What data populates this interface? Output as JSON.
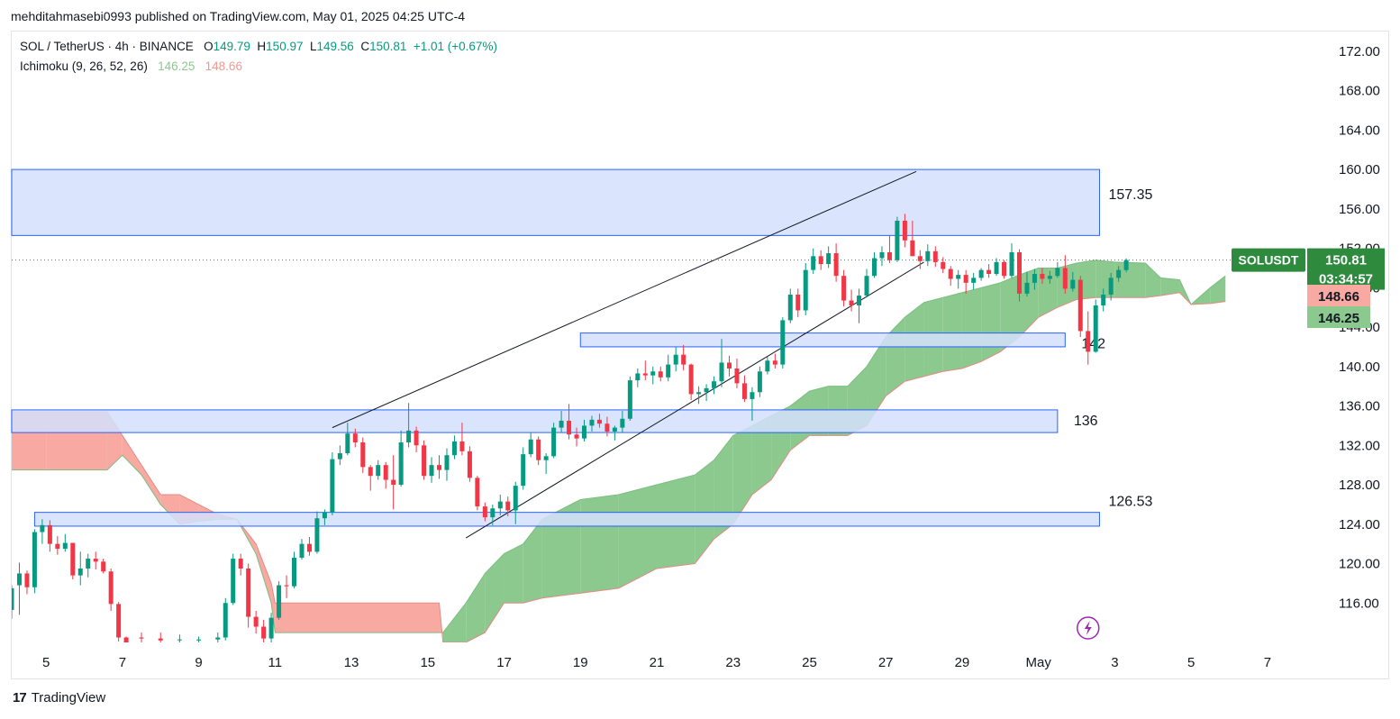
{
  "header": {
    "published": "mehditahmasebi0993 published on TradingView.com, May 01, 2025 04:25 UTC-4"
  },
  "legend": {
    "symbol": "SOL / TetherUS · 4h · BINANCE",
    "o_label": "O",
    "o_value": "149.79",
    "h_label": "H",
    "h_value": "150.97",
    "l_label": "L",
    "l_value": "149.56",
    "c_label": "C",
    "c_value": "150.81",
    "change": "+1.01 (+0.67%)",
    "indicator": "Ichimoku (9, 26, 52, 26)",
    "span_a": "146.25",
    "span_b": "148.66"
  },
  "footer": {
    "brand": "TradingView",
    "logo": "17"
  },
  "colors": {
    "up": "#089981",
    "down": "#f23645",
    "cloud_bull": "#8bc98e",
    "cloud_bear": "#f7a9a2",
    "zone_fill": "#d4e1fd",
    "zone_border": "#2962ff",
    "price_tag": "#2e8b3e"
  },
  "chart_data": {
    "type": "candlestick",
    "title": "SOL / TetherUS · 4h · BINANCE",
    "ylim": [
      112,
      174
    ],
    "y_ticks": [
      "172.00",
      "168.00",
      "164.00",
      "160.00",
      "156.00",
      "152.00",
      "148.00",
      "144.00",
      "140.00",
      "136.00",
      "132.00",
      "128.00",
      "124.00",
      "120.00",
      "116.00"
    ],
    "x_ticks": [
      "5",
      "7",
      "9",
      "11",
      "13",
      "15",
      "17",
      "19",
      "21",
      "23",
      "25",
      "27",
      "29",
      "May",
      "3",
      "5",
      "7"
    ],
    "x_tick_days": [
      5,
      7,
      9,
      11,
      13,
      15,
      17,
      19,
      21,
      23,
      25,
      27,
      29,
      31,
      33,
      35,
      37
    ],
    "x_range_days": [
      4.1,
      37.9
    ],
    "last_price": {
      "label": "SOLUSDT",
      "value": "150.81",
      "countdown": "03:34:57"
    },
    "ichimoku_tags": [
      {
        "value": "148.66",
        "kind": "span_b"
      },
      {
        "value": "146.25",
        "kind": "span_a"
      }
    ],
    "zones": [
      {
        "label": "157.35",
        "low": 153.3,
        "high": 160.0,
        "day_start": 4.1,
        "day_end": 32.6
      },
      {
        "label": "142",
        "low": 142.0,
        "high": 143.4,
        "day_start": 19.0,
        "day_end": 31.7
      },
      {
        "label": "136",
        "low": 133.3,
        "high": 135.6,
        "day_start": 4.1,
        "day_end": 31.5
      },
      {
        "label": "126.53",
        "low": 123.8,
        "high": 125.2,
        "day_start": 4.7,
        "day_end": 32.6
      }
    ],
    "trendlines": [
      {
        "day1": 12.5,
        "p1": 133.8,
        "day2": 27.8,
        "p2": 159.8
      },
      {
        "day1": 16.0,
        "p1": 122.6,
        "day2": 28.0,
        "p2": 150.6
      }
    ],
    "cloud": [
      {
        "day": 4.1,
        "a": 129.5,
        "b": 135.4
      },
      {
        "day": 5.0,
        "a": 129.5,
        "b": 135.4
      },
      {
        "day": 6.6,
        "a": 129.5,
        "b": 135.4
      },
      {
        "day": 7.0,
        "a": 131.0,
        "b": 133.0
      },
      {
        "day": 7.5,
        "a": 129.0,
        "b": 130.0
      },
      {
        "day": 8.0,
        "a": 126.0,
        "b": 127.0
      },
      {
        "day": 8.5,
        "a": 124.0,
        "b": 127.0
      },
      {
        "day": 9.0,
        "a": 124.3,
        "b": 126.0
      },
      {
        "day": 9.5,
        "a": 124.5,
        "b": 125.0
      },
      {
        "day": 10.0,
        "a": 124.5,
        "b": 124.5
      },
      {
        "day": 10.5,
        "a": 121.0,
        "b": 122.0
      },
      {
        "day": 10.9,
        "a": 116.0,
        "b": 118.0
      },
      {
        "day": 11.0,
        "a": 113.0,
        "b": 116.0
      },
      {
        "day": 15.3,
        "a": 113.0,
        "b": 116.0
      },
      {
        "day": 15.4,
        "a": 113.0,
        "b": 112.0
      },
      {
        "day": 16.0,
        "a": 116.0,
        "b": 112.0
      },
      {
        "day": 16.5,
        "a": 119.0,
        "b": 113.0
      },
      {
        "day": 17.0,
        "a": 121.0,
        "b": 116.0
      },
      {
        "day": 17.5,
        "a": 122.0,
        "b": 116.0
      },
      {
        "day": 18.0,
        "a": 124.5,
        "b": 116.5
      },
      {
        "day": 19.0,
        "a": 126.5,
        "b": 117.0
      },
      {
        "day": 20.0,
        "a": 127.0,
        "b": 117.5
      },
      {
        "day": 21.0,
        "a": 128.0,
        "b": 119.5
      },
      {
        "day": 22.0,
        "a": 129.0,
        "b": 120.0
      },
      {
        "day": 22.5,
        "a": 130.5,
        "b": 122.5
      },
      {
        "day": 23.0,
        "a": 133.0,
        "b": 124.0
      },
      {
        "day": 23.5,
        "a": 134.0,
        "b": 127.0
      },
      {
        "day": 24.0,
        "a": 135.0,
        "b": 128.5
      },
      {
        "day": 24.5,
        "a": 136.0,
        "b": 131.5
      },
      {
        "day": 25.0,
        "a": 137.5,
        "b": 133.0
      },
      {
        "day": 25.5,
        "a": 138.0,
        "b": 133.0
      },
      {
        "day": 26.0,
        "a": 138.0,
        "b": 133.0
      },
      {
        "day": 26.5,
        "a": 140.0,
        "b": 134.0
      },
      {
        "day": 27.0,
        "a": 143.0,
        "b": 137.0
      },
      {
        "day": 27.5,
        "a": 145.0,
        "b": 138.5
      },
      {
        "day": 28.0,
        "a": 146.5,
        "b": 139.0
      },
      {
        "day": 28.5,
        "a": 147.0,
        "b": 139.5
      },
      {
        "day": 29.0,
        "a": 147.5,
        "b": 139.8
      },
      {
        "day": 29.5,
        "a": 148.0,
        "b": 140.5
      },
      {
        "day": 30.0,
        "a": 148.5,
        "b": 141.5
      },
      {
        "day": 30.5,
        "a": 149.3,
        "b": 143.0
      },
      {
        "day": 31.0,
        "a": 150.0,
        "b": 145.0
      },
      {
        "day": 31.5,
        "a": 150.0,
        "b": 146.0
      },
      {
        "day": 32.0,
        "a": 150.5,
        "b": 146.8
      },
      {
        "day": 32.5,
        "a": 150.8,
        "b": 147.0
      },
      {
        "day": 33.0,
        "a": 150.6,
        "b": 147.0
      },
      {
        "day": 33.8,
        "a": 150.5,
        "b": 147.0
      },
      {
        "day": 34.2,
        "a": 149.0,
        "b": 147.2
      },
      {
        "day": 34.7,
        "a": 148.8,
        "b": 147.5
      },
      {
        "day": 35.0,
        "a": 146.3,
        "b": 146.3
      },
      {
        "day": 35.5,
        "a": 148.0,
        "b": 146.4
      },
      {
        "day": 35.9,
        "a": 149.2,
        "b": 146.6
      }
    ],
    "candles": [
      [
        4.1,
        117.8,
        114.4,
        115.3,
        117.5
      ],
      [
        4.3,
        120.1,
        114.8,
        117.8,
        119.0
      ],
      [
        4.5,
        119.3,
        116.9,
        119.0,
        117.6
      ],
      [
        4.7,
        123.5,
        117.0,
        117.6,
        123.2
      ],
      [
        4.9,
        124.5,
        122.0,
        123.2,
        123.9
      ],
      [
        5.1,
        124.4,
        121.2,
        123.9,
        122.0
      ],
      [
        5.3,
        122.8,
        120.9,
        122.0,
        121.5
      ],
      [
        5.5,
        123.0,
        121.2,
        121.5,
        122.1
      ],
      [
        5.7,
        122.1,
        118.4,
        122.1,
        118.8
      ],
      [
        5.9,
        121.2,
        117.8,
        118.8,
        119.5
      ],
      [
        6.1,
        121.0,
        118.6,
        119.5,
        120.5
      ],
      [
        6.3,
        121.2,
        119.4,
        120.5,
        120.2
      ],
      [
        6.5,
        120.5,
        119.0,
        120.2,
        119.2
      ],
      [
        6.7,
        119.5,
        115.2,
        119.2,
        115.9
      ],
      [
        6.9,
        116.1,
        112.1,
        115.9,
        112.5
      ],
      [
        7.1,
        112.6,
        111.8,
        112.5,
        112.0
      ],
      [
        7.5,
        113.0,
        111.8,
        112.5,
        112.4
      ],
      [
        8.0,
        113.0,
        111.8,
        112.4,
        112.2
      ],
      [
        8.5,
        112.8,
        112.0,
        112.3,
        112.3
      ],
      [
        9.0,
        112.6,
        111.8,
        112.2,
        112.3
      ],
      [
        9.5,
        113.0,
        112.0,
        112.3,
        112.5
      ],
      [
        9.7,
        116.5,
        112.2,
        112.5,
        116.0
      ],
      [
        9.9,
        121.0,
        115.8,
        116.0,
        120.5
      ],
      [
        10.1,
        121.0,
        118.8,
        120.5,
        119.5
      ],
      [
        10.3,
        120.0,
        113.5,
        119.5,
        114.6
      ],
      [
        10.5,
        115.2,
        112.9,
        114.6,
        113.6
      ],
      [
        10.7,
        114.3,
        111.8,
        113.6,
        112.4
      ],
      [
        10.9,
        115.0,
        112.0,
        112.4,
        114.5
      ],
      [
        11.1,
        118.2,
        114.3,
        114.5,
        117.8
      ],
      [
        11.3,
        118.8,
        116.5,
        117.8,
        117.7
      ],
      [
        11.5,
        121.2,
        117.5,
        117.7,
        120.6
      ],
      [
        11.7,
        122.5,
        120.4,
        120.6,
        122.0
      ],
      [
        11.9,
        122.7,
        120.8,
        122.0,
        121.2
      ],
      [
        12.1,
        125.3,
        121.0,
        121.2,
        124.6
      ],
      [
        12.3,
        125.5,
        123.9,
        124.6,
        125.2
      ],
      [
        12.5,
        131.3,
        124.9,
        125.2,
        130.6
      ],
      [
        12.7,
        132.0,
        130.0,
        130.6,
        131.2
      ],
      [
        12.9,
        134.3,
        131.0,
        131.2,
        133.2
      ],
      [
        13.1,
        133.7,
        131.8,
        133.2,
        132.3
      ],
      [
        13.3,
        132.8,
        129.2,
        132.3,
        129.8
      ],
      [
        13.5,
        130.0,
        127.4,
        129.8,
        128.9
      ],
      [
        13.7,
        130.5,
        128.5,
        128.9,
        130.0
      ],
      [
        13.9,
        130.3,
        127.6,
        130.0,
        128.5
      ],
      [
        14.1,
        131.0,
        125.5,
        128.5,
        128.0
      ],
      [
        14.3,
        133.5,
        127.8,
        128.0,
        132.3
      ],
      [
        14.5,
        136.3,
        131.8,
        132.3,
        133.5
      ],
      [
        14.7,
        133.9,
        131.3,
        133.5,
        132.0
      ],
      [
        14.9,
        132.5,
        128.5,
        132.0,
        128.9
      ],
      [
        15.1,
        130.8,
        128.2,
        128.9,
        130.0
      ],
      [
        15.3,
        131.0,
        128.6,
        130.0,
        129.5
      ],
      [
        15.5,
        131.7,
        128.4,
        129.5,
        131.0
      ],
      [
        15.7,
        133.0,
        130.6,
        131.0,
        132.4
      ],
      [
        15.9,
        134.3,
        131.0,
        132.4,
        131.4
      ],
      [
        16.1,
        131.9,
        128.3,
        131.4,
        128.7
      ],
      [
        16.3,
        128.9,
        125.4,
        128.7,
        125.8
      ],
      [
        16.5,
        126.2,
        124.3,
        125.8,
        124.7
      ],
      [
        16.7,
        126.0,
        123.9,
        124.7,
        125.6
      ],
      [
        16.9,
        127.0,
        124.9,
        125.6,
        126.3
      ],
      [
        17.1,
        126.8,
        124.8,
        126.3,
        125.4
      ],
      [
        17.3,
        128.3,
        124.0,
        125.4,
        127.9
      ],
      [
        17.5,
        131.8,
        127.5,
        127.9,
        131.1
      ],
      [
        17.7,
        133.3,
        130.8,
        131.1,
        132.6
      ],
      [
        17.9,
        132.9,
        130.0,
        132.6,
        130.5
      ],
      [
        18.1,
        131.2,
        129.1,
        130.5,
        130.9
      ],
      [
        18.3,
        134.3,
        130.7,
        130.9,
        133.8
      ],
      [
        18.5,
        135.5,
        133.3,
        133.8,
        134.5
      ],
      [
        18.7,
        136.2,
        132.6,
        134.5,
        133.1
      ],
      [
        18.9,
        133.8,
        131.9,
        133.1,
        132.7
      ],
      [
        19.1,
        134.6,
        132.4,
        132.7,
        134.0
      ],
      [
        19.3,
        135.0,
        133.4,
        134.0,
        134.6
      ],
      [
        19.5,
        135.2,
        133.8,
        134.6,
        134.2
      ],
      [
        19.7,
        134.9,
        132.9,
        134.2,
        133.4
      ],
      [
        19.9,
        134.0,
        132.5,
        133.4,
        133.8
      ],
      [
        20.1,
        135.5,
        133.3,
        133.8,
        134.7
      ],
      [
        20.3,
        139.0,
        134.5,
        134.7,
        138.6
      ],
      [
        20.5,
        139.8,
        137.9,
        138.6,
        139.3
      ],
      [
        20.7,
        140.6,
        138.6,
        139.3,
        139.1
      ],
      [
        20.9,
        140.0,
        138.2,
        139.1,
        139.5
      ],
      [
        21.1,
        140.0,
        138.5,
        139.5,
        138.9
      ],
      [
        21.3,
        141.2,
        138.5,
        138.9,
        140.2
      ],
      [
        21.5,
        142.0,
        139.5,
        140.2,
        141.2
      ],
      [
        21.7,
        142.2,
        139.6,
        141.2,
        140.2
      ],
      [
        21.9,
        140.3,
        136.6,
        140.2,
        137.2
      ],
      [
        22.1,
        138.0,
        136.2,
        137.2,
        137.4
      ],
      [
        22.3,
        138.2,
        136.5,
        137.4,
        137.8
      ],
      [
        22.5,
        139.0,
        137.2,
        137.8,
        138.5
      ],
      [
        22.7,
        142.8,
        137.9,
        138.5,
        140.4
      ],
      [
        22.9,
        141.1,
        139.0,
        140.4,
        139.8
      ],
      [
        23.1,
        140.8,
        137.8,
        139.8,
        138.3
      ],
      [
        23.3,
        139.1,
        136.4,
        138.3,
        136.7
      ],
      [
        23.5,
        137.9,
        134.5,
        136.7,
        137.4
      ],
      [
        23.7,
        140.0,
        136.9,
        137.4,
        139.5
      ],
      [
        23.9,
        141.0,
        139.2,
        139.5,
        140.6
      ],
      [
        24.1,
        141.3,
        139.8,
        140.6,
        140.2
      ],
      [
        24.3,
        145.0,
        139.8,
        140.2,
        144.7
      ],
      [
        24.5,
        147.9,
        144.4,
        144.7,
        147.3
      ],
      [
        24.7,
        147.9,
        145.0,
        147.3,
        145.7
      ],
      [
        24.9,
        150.5,
        145.2,
        145.7,
        149.8
      ],
      [
        25.1,
        152.0,
        149.4,
        149.8,
        151.2
      ],
      [
        25.3,
        151.8,
        149.8,
        151.2,
        150.4
      ],
      [
        25.5,
        152.2,
        150.0,
        150.4,
        151.5
      ],
      [
        25.7,
        152.5,
        148.6,
        151.5,
        149.2
      ],
      [
        25.9,
        149.8,
        146.1,
        149.2,
        146.7
      ],
      [
        26.1,
        147.8,
        145.6,
        146.7,
        146.2
      ],
      [
        26.3,
        147.9,
        144.4,
        146.2,
        147.2
      ],
      [
        26.5,
        149.9,
        147.0,
        147.2,
        149.2
      ],
      [
        26.7,
        151.6,
        149.0,
        149.2,
        151.0
      ],
      [
        26.9,
        152.2,
        150.2,
        151.0,
        151.6
      ],
      [
        27.1,
        153.3,
        150.5,
        151.6,
        150.8
      ],
      [
        27.3,
        155.2,
        150.6,
        150.8,
        154.8
      ],
      [
        27.5,
        155.5,
        152.1,
        154.8,
        152.8
      ],
      [
        27.7,
        154.8,
        152.0,
        152.8,
        151.2
      ],
      [
        27.9,
        151.8,
        149.9,
        151.2,
        150.7
      ],
      [
        28.1,
        152.4,
        150.2,
        150.7,
        151.7
      ],
      [
        28.3,
        152.2,
        150.1,
        151.7,
        150.6
      ],
      [
        28.5,
        151.1,
        149.5,
        150.6,
        149.9
      ],
      [
        28.7,
        150.2,
        148.2,
        149.9,
        148.9
      ],
      [
        28.9,
        149.8,
        147.9,
        148.9,
        149.3
      ],
      [
        29.1,
        149.8,
        147.4,
        149.3,
        148.5
      ],
      [
        29.3,
        149.5,
        147.8,
        148.5,
        149.0
      ],
      [
        29.5,
        150.0,
        148.7,
        149.0,
        149.8
      ],
      [
        29.7,
        150.4,
        149.0,
        149.8,
        149.4
      ],
      [
        29.9,
        151.0,
        149.2,
        149.4,
        150.6
      ],
      [
        30.1,
        150.8,
        148.9,
        150.6,
        149.2
      ],
      [
        30.3,
        152.5,
        149.0,
        149.2,
        151.6
      ],
      [
        30.5,
        151.9,
        146.6,
        151.6,
        147.4
      ],
      [
        30.7,
        149.6,
        147.1,
        147.4,
        148.5
      ],
      [
        30.9,
        149.9,
        147.8,
        148.5,
        149.4
      ],
      [
        31.1,
        150.0,
        148.4,
        149.4,
        148.9
      ],
      [
        31.3,
        149.7,
        148.4,
        148.9,
        149.2
      ],
      [
        31.5,
        150.6,
        149.0,
        149.2,
        150.0
      ],
      [
        31.7,
        151.3,
        147.4,
        150.0,
        147.9
      ],
      [
        31.9,
        149.6,
        147.6,
        147.9,
        148.8
      ],
      [
        32.1,
        149.2,
        143.0,
        148.8,
        143.6
      ],
      [
        32.3,
        145.6,
        140.2,
        143.6,
        141.5
      ],
      [
        32.5,
        146.8,
        141.4,
        141.5,
        146.2
      ],
      [
        32.7,
        147.9,
        145.6,
        146.2,
        147.3
      ],
      [
        32.9,
        149.5,
        146.7,
        147.3,
        149.0
      ],
      [
        33.1,
        150.2,
        148.6,
        149.0,
        149.8
      ],
      [
        33.3,
        150.97,
        149.56,
        149.79,
        150.81
      ]
    ]
  }
}
